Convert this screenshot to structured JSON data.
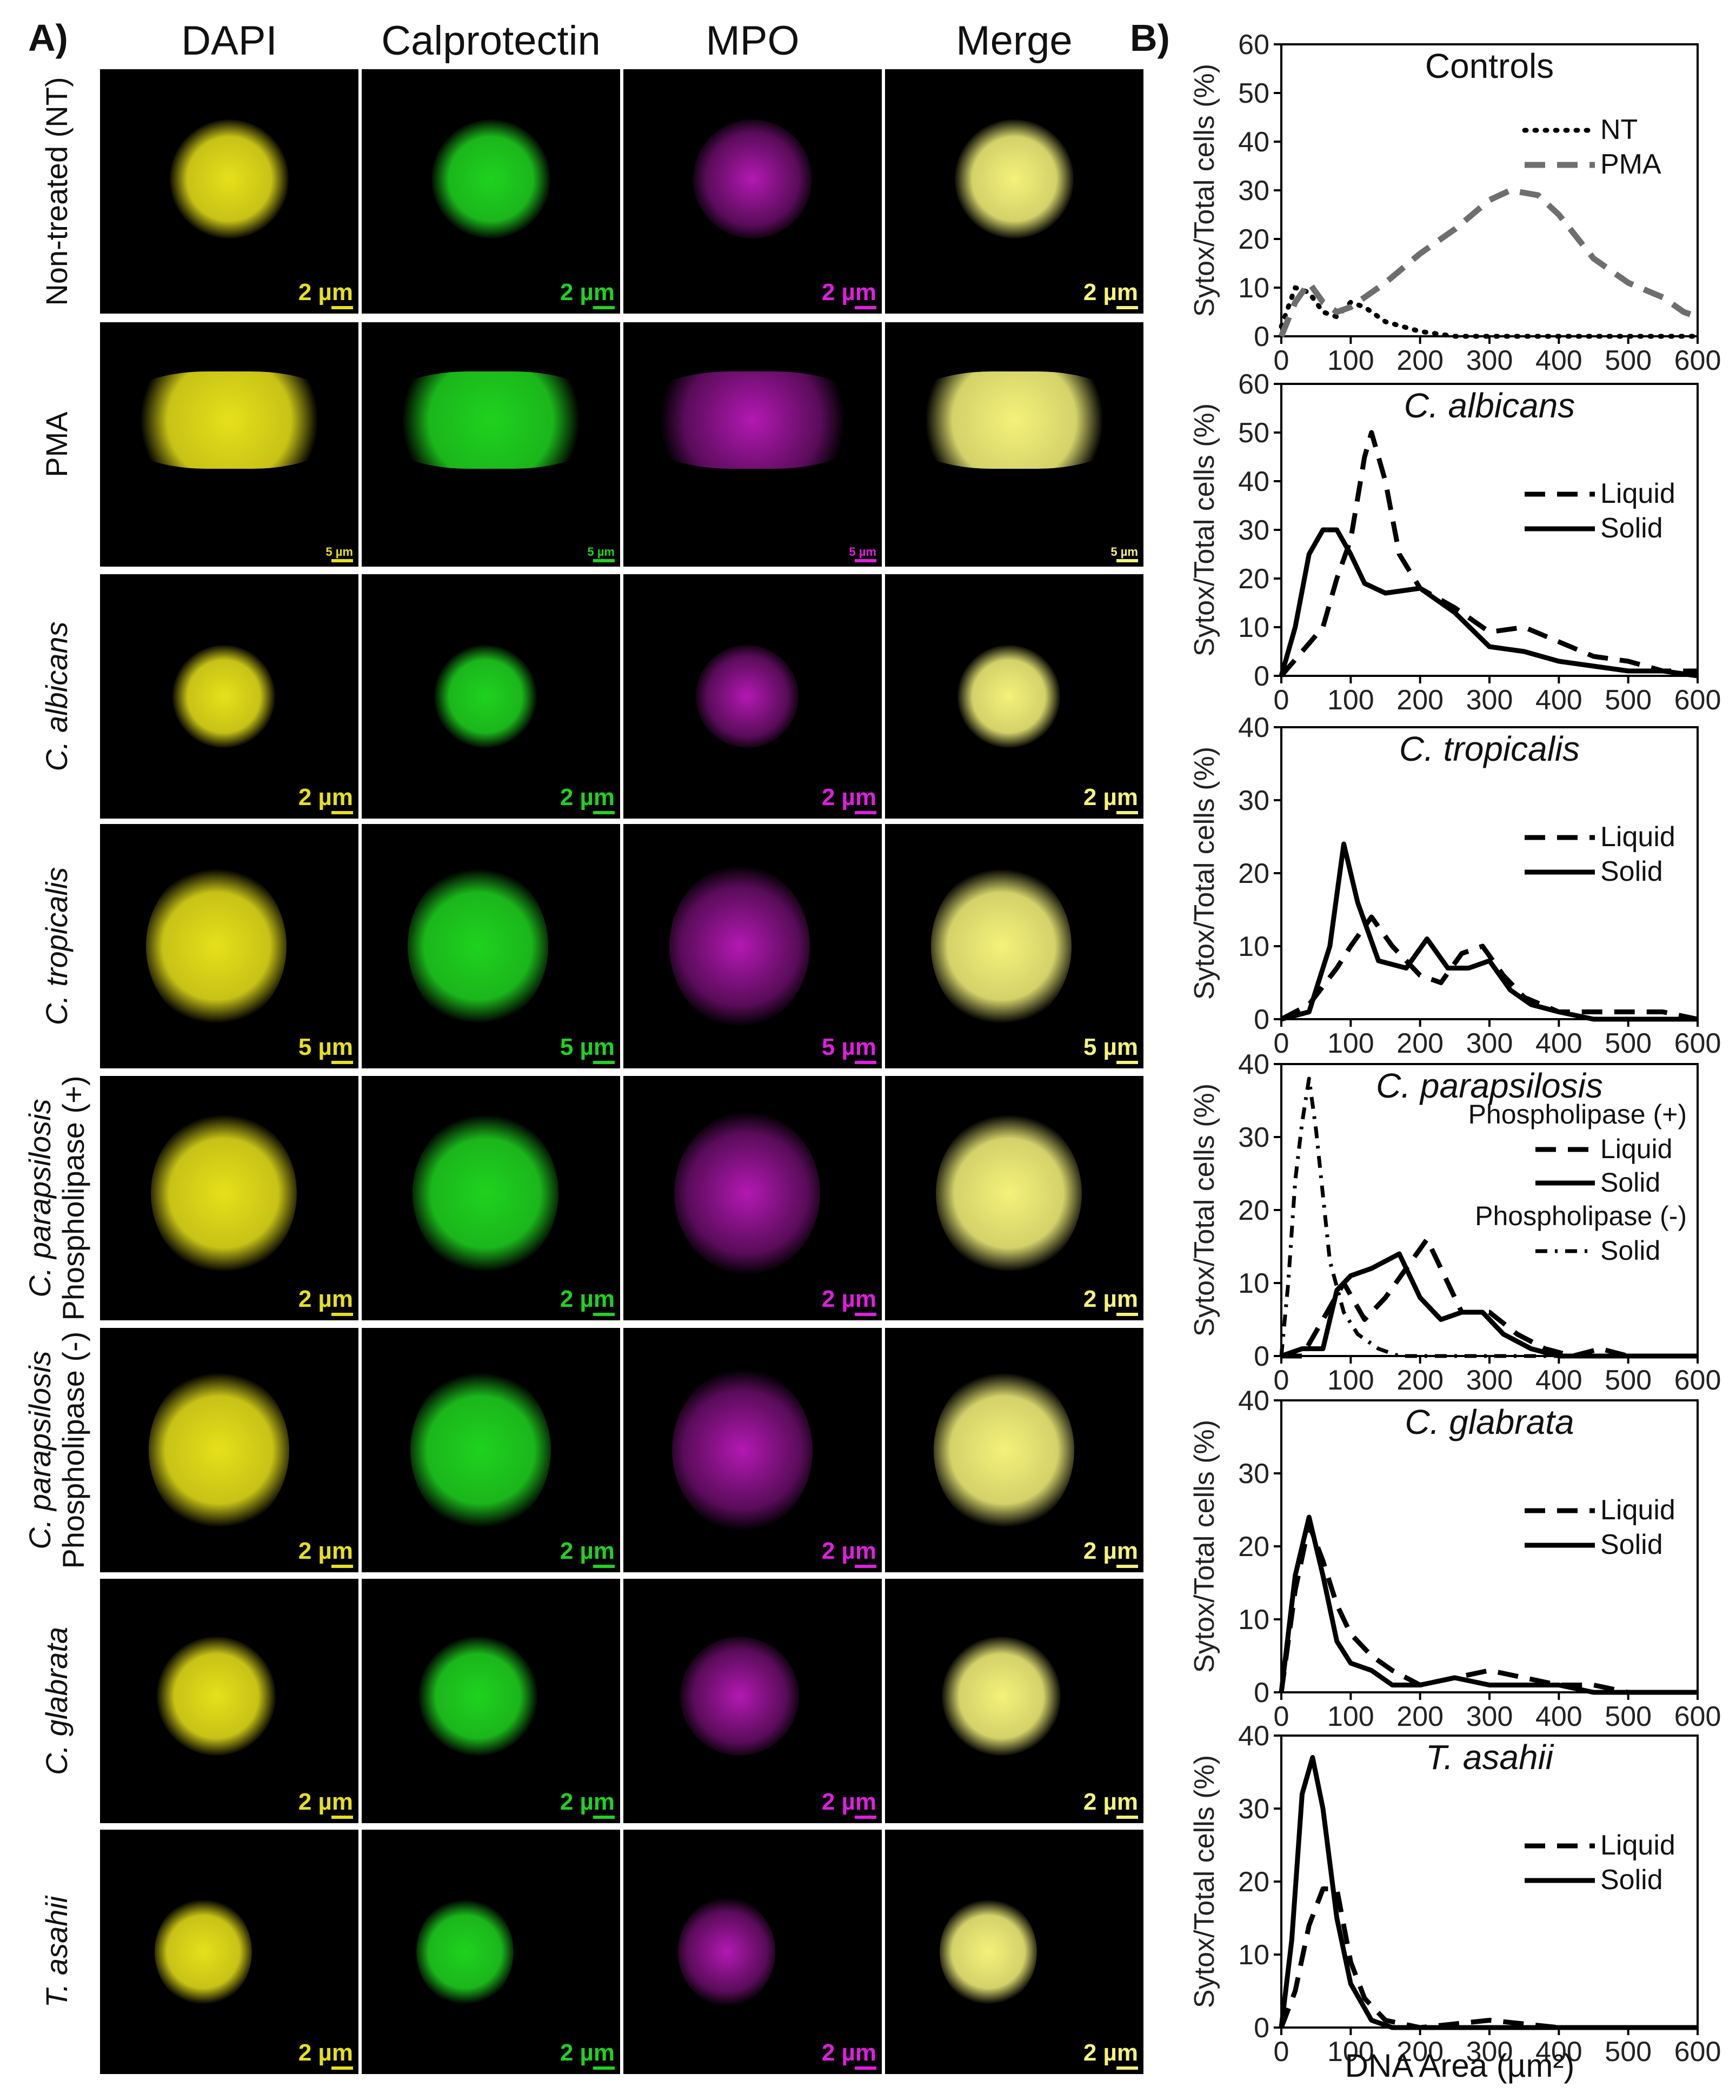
{
  "panel_a": {
    "letter": "A)",
    "columns": [
      "DAPI",
      "Calprotectin",
      "MPO",
      "Merge"
    ],
    "rows": [
      {
        "label_lines": [
          "Non-treated (NT)"
        ],
        "italic": false,
        "scale": "2 µm"
      },
      {
        "label_lines": [
          "PMA"
        ],
        "italic": false,
        "scale": "5 µm"
      },
      {
        "label_lines": [
          "C. albicans"
        ],
        "italic": true,
        "scale": "2 µm"
      },
      {
        "label_lines": [
          "C. tropicalis"
        ],
        "italic": true,
        "scale": "5 µm"
      },
      {
        "label_lines": [
          "C. parapsilosis",
          "Phospholipase (+)"
        ],
        "italic": true,
        "scale": "2 µm"
      },
      {
        "label_lines": [
          "C. parapsilosis",
          "Phospholipase (-)"
        ],
        "italic": true,
        "scale": "2 µm"
      },
      {
        "label_lines": [
          "C. glabrata"
        ],
        "italic": true,
        "scale": "2 µm"
      },
      {
        "label_lines": [
          "T. asahii"
        ],
        "italic": true,
        "scale": "2 µm"
      }
    ],
    "channel_colors": {
      "DAPI": "#e6e01a",
      "Calprotectin": "#1fd21f",
      "MPO": "#e01ee0",
      "Merge": "#f4f27a"
    }
  },
  "panel_b": {
    "letter": "B)",
    "xlabel": "DNA Area (µm²)",
    "ylabel": "Sytox/Total cells (%)"
  },
  "chart_data": [
    {
      "type": "line",
      "title": "Controls",
      "title_italic": false,
      "xlim": [
        0,
        600
      ],
      "ylim": [
        0,
        60
      ],
      "xticks": [
        0,
        100,
        200,
        300,
        400,
        500,
        600
      ],
      "yticks": [
        0,
        10,
        20,
        30,
        40,
        50,
        60
      ],
      "legend": [
        {
          "label": "NT",
          "style": "dotted"
        },
        {
          "label": "PMA",
          "style": "dashed-grey"
        }
      ],
      "series": [
        {
          "name": "NT",
          "style": "dotted",
          "points": [
            [
              0,
              2
            ],
            [
              20,
              10
            ],
            [
              40,
              9
            ],
            [
              60,
              5
            ],
            [
              80,
              4
            ],
            [
              100,
              7
            ],
            [
              120,
              6
            ],
            [
              150,
              3
            ],
            [
              200,
              1
            ],
            [
              250,
              0
            ],
            [
              300,
              0
            ],
            [
              400,
              0
            ],
            [
              500,
              0
            ],
            [
              600,
              0
            ]
          ]
        },
        {
          "name": "PMA",
          "style": "dashed-grey",
          "points": [
            [
              0,
              0
            ],
            [
              20,
              7
            ],
            [
              40,
              11
            ],
            [
              60,
              7
            ],
            [
              80,
              5
            ],
            [
              100,
              6
            ],
            [
              120,
              8
            ],
            [
              150,
              11
            ],
            [
              200,
              17
            ],
            [
              250,
              22
            ],
            [
              300,
              28
            ],
            [
              330,
              30
            ],
            [
              370,
              29
            ],
            [
              400,
              25
            ],
            [
              450,
              16
            ],
            [
              500,
              11
            ],
            [
              550,
              8
            ],
            [
              580,
              5
            ],
            [
              600,
              4
            ]
          ]
        }
      ]
    },
    {
      "type": "line",
      "title": "C. albicans",
      "title_italic": true,
      "xlim": [
        0,
        600
      ],
      "ylim": [
        0,
        60
      ],
      "xticks": [
        0,
        100,
        200,
        300,
        400,
        500,
        600
      ],
      "yticks": [
        0,
        10,
        20,
        30,
        40,
        50,
        60
      ],
      "legend": [
        {
          "label": "Liquid",
          "style": "dashed"
        },
        {
          "label": "Solid",
          "style": "solid"
        }
      ],
      "series": [
        {
          "name": "Liquid",
          "style": "dashed",
          "points": [
            [
              0,
              0
            ],
            [
              30,
              5
            ],
            [
              60,
              10
            ],
            [
              80,
              20
            ],
            [
              100,
              28
            ],
            [
              120,
              45
            ],
            [
              130,
              50
            ],
            [
              150,
              40
            ],
            [
              170,
              25
            ],
            [
              200,
              18
            ],
            [
              250,
              14
            ],
            [
              300,
              9
            ],
            [
              350,
              10
            ],
            [
              400,
              7
            ],
            [
              450,
              4
            ],
            [
              500,
              3
            ],
            [
              550,
              1
            ],
            [
              600,
              1
            ]
          ]
        },
        {
          "name": "Solid",
          "style": "solid",
          "points": [
            [
              0,
              0
            ],
            [
              20,
              10
            ],
            [
              40,
              25
            ],
            [
              60,
              30
            ],
            [
              80,
              30
            ],
            [
              100,
              25
            ],
            [
              120,
              19
            ],
            [
              150,
              17
            ],
            [
              200,
              18
            ],
            [
              250,
              13
            ],
            [
              300,
              6
            ],
            [
              350,
              5
            ],
            [
              400,
              3
            ],
            [
              450,
              2
            ],
            [
              500,
              1
            ],
            [
              550,
              1
            ],
            [
              600,
              0
            ]
          ]
        }
      ]
    },
    {
      "type": "line",
      "title": "C. tropicalis",
      "title_italic": true,
      "xlim": [
        0,
        600
      ],
      "ylim": [
        0,
        40
      ],
      "xticks": [
        0,
        100,
        200,
        300,
        400,
        500,
        600
      ],
      "yticks": [
        0,
        10,
        20,
        30,
        40
      ],
      "legend": [
        {
          "label": "Liquid",
          "style": "dashed"
        },
        {
          "label": "Solid",
          "style": "solid"
        }
      ],
      "series": [
        {
          "name": "Liquid",
          "style": "dashed",
          "points": [
            [
              0,
              0
            ],
            [
              40,
              2
            ],
            [
              80,
              7
            ],
            [
              100,
              10
            ],
            [
              130,
              14
            ],
            [
              160,
              10
            ],
            [
              200,
              6
            ],
            [
              230,
              5
            ],
            [
              260,
              9
            ],
            [
              290,
              10
            ],
            [
              320,
              6
            ],
            [
              350,
              3
            ],
            [
              400,
              1
            ],
            [
              450,
              1
            ],
            [
              500,
              1
            ],
            [
              550,
              1
            ],
            [
              600,
              0
            ]
          ]
        },
        {
          "name": "Solid",
          "style": "solid",
          "points": [
            [
              0,
              0
            ],
            [
              40,
              1
            ],
            [
              70,
              10
            ],
            [
              90,
              24
            ],
            [
              110,
              16
            ],
            [
              140,
              8
            ],
            [
              180,
              7
            ],
            [
              210,
              11
            ],
            [
              240,
              7
            ],
            [
              270,
              7
            ],
            [
              300,
              8
            ],
            [
              330,
              4
            ],
            [
              360,
              2
            ],
            [
              400,
              1
            ],
            [
              450,
              0
            ],
            [
              500,
              0
            ],
            [
              600,
              0
            ]
          ]
        }
      ]
    },
    {
      "type": "line",
      "title": "C. parapsilosis",
      "title_italic": true,
      "xlim": [
        0,
        600
      ],
      "ylim": [
        0,
        40
      ],
      "xticks": [
        0,
        100,
        200,
        300,
        400,
        500,
        600
      ],
      "yticks": [
        0,
        10,
        20,
        30,
        40
      ],
      "legend_groups": [
        "Phospholipase (+)",
        "Phospholipase (-)"
      ],
      "legend": [
        {
          "label": "Liquid",
          "group": "Phospholipase (+)",
          "style": "dashed"
        },
        {
          "label": "Solid",
          "group": "Phospholipase (+)",
          "style": "solid"
        },
        {
          "label": "Solid",
          "group": "Phospholipase (-)",
          "style": "dashdot"
        }
      ],
      "series": [
        {
          "name": "Phospholipase (+) Liquid",
          "style": "dashed",
          "points": [
            [
              0,
              0
            ],
            [
              30,
              0
            ],
            [
              60,
              5
            ],
            [
              90,
              10
            ],
            [
              120,
              5
            ],
            [
              150,
              8
            ],
            [
              180,
              12
            ],
            [
              210,
              16
            ],
            [
              230,
              12
            ],
            [
              260,
              6
            ],
            [
              300,
              6
            ],
            [
              340,
              3
            ],
            [
              380,
              1
            ],
            [
              420,
              0
            ],
            [
              460,
              1
            ],
            [
              500,
              0
            ],
            [
              600,
              0
            ]
          ]
        },
        {
          "name": "Phospholipase (+) Solid",
          "style": "solid",
          "points": [
            [
              0,
              0
            ],
            [
              30,
              1
            ],
            [
              60,
              1
            ],
            [
              80,
              9
            ],
            [
              100,
              11
            ],
            [
              130,
              12
            ],
            [
              170,
              14
            ],
            [
              200,
              8
            ],
            [
              230,
              5
            ],
            [
              260,
              6
            ],
            [
              290,
              6
            ],
            [
              320,
              3
            ],
            [
              360,
              1
            ],
            [
              400,
              0
            ],
            [
              500,
              0
            ],
            [
              600,
              0
            ]
          ]
        },
        {
          "name": "Phospholipase (-) Solid",
          "style": "dashdot",
          "points": [
            [
              0,
              0
            ],
            [
              10,
              10
            ],
            [
              20,
              24
            ],
            [
              30,
              32
            ],
            [
              40,
              38
            ],
            [
              50,
              31
            ],
            [
              60,
              22
            ],
            [
              70,
              13
            ],
            [
              90,
              6
            ],
            [
              110,
              3
            ],
            [
              140,
              1
            ],
            [
              170,
              0
            ],
            [
              600,
              0
            ]
          ]
        }
      ]
    },
    {
      "type": "line",
      "title": "C. glabrata",
      "title_italic": true,
      "xlim": [
        0,
        600
      ],
      "ylim": [
        0,
        40
      ],
      "xticks": [
        0,
        100,
        200,
        300,
        400,
        500,
        600
      ],
      "yticks": [
        0,
        10,
        20,
        30,
        40
      ],
      "legend": [
        {
          "label": "Liquid",
          "style": "dashed"
        },
        {
          "label": "Solid",
          "style": "solid"
        }
      ],
      "series": [
        {
          "name": "Liquid",
          "style": "dashed",
          "points": [
            [
              0,
              0
            ],
            [
              20,
              14
            ],
            [
              40,
              23
            ],
            [
              60,
              18
            ],
            [
              80,
              12
            ],
            [
              100,
              8
            ],
            [
              130,
              5
            ],
            [
              160,
              3
            ],
            [
              200,
              1
            ],
            [
              250,
              2
            ],
            [
              300,
              3
            ],
            [
              350,
              2
            ],
            [
              400,
              1
            ],
            [
              450,
              1
            ],
            [
              500,
              0
            ],
            [
              600,
              0
            ]
          ]
        },
        {
          "name": "Solid",
          "style": "solid",
          "points": [
            [
              0,
              0
            ],
            [
              20,
              16
            ],
            [
              40,
              24
            ],
            [
              60,
              16
            ],
            [
              80,
              7
            ],
            [
              100,
              4
            ],
            [
              130,
              3
            ],
            [
              160,
              1
            ],
            [
              200,
              1
            ],
            [
              250,
              2
            ],
            [
              300,
              1
            ],
            [
              350,
              1
            ],
            [
              400,
              1
            ],
            [
              450,
              0
            ],
            [
              500,
              0
            ],
            [
              600,
              0
            ]
          ]
        }
      ]
    },
    {
      "type": "line",
      "title": "T. asahii",
      "title_italic": true,
      "xlim": [
        0,
        600
      ],
      "ylim": [
        0,
        40
      ],
      "xticks": [
        0,
        100,
        200,
        300,
        400,
        500,
        600
      ],
      "yticks": [
        0,
        10,
        20,
        30,
        40
      ],
      "legend": [
        {
          "label": "Liquid",
          "style": "dashed"
        },
        {
          "label": "Solid",
          "style": "solid"
        }
      ],
      "series": [
        {
          "name": "Liquid",
          "style": "dashed",
          "points": [
            [
              0,
              0
            ],
            [
              20,
              5
            ],
            [
              40,
              14
            ],
            [
              60,
              19
            ],
            [
              80,
              19
            ],
            [
              100,
              9
            ],
            [
              120,
              4
            ],
            [
              150,
              1
            ],
            [
              200,
              0
            ],
            [
              300,
              1
            ],
            [
              400,
              0
            ],
            [
              600,
              0
            ]
          ]
        },
        {
          "name": "Solid",
          "style": "solid",
          "points": [
            [
              0,
              0
            ],
            [
              15,
              12
            ],
            [
              30,
              32
            ],
            [
              45,
              37
            ],
            [
              60,
              30
            ],
            [
              80,
              15
            ],
            [
              100,
              6
            ],
            [
              130,
              1
            ],
            [
              160,
              0
            ],
            [
              600,
              0
            ]
          ]
        }
      ]
    }
  ]
}
